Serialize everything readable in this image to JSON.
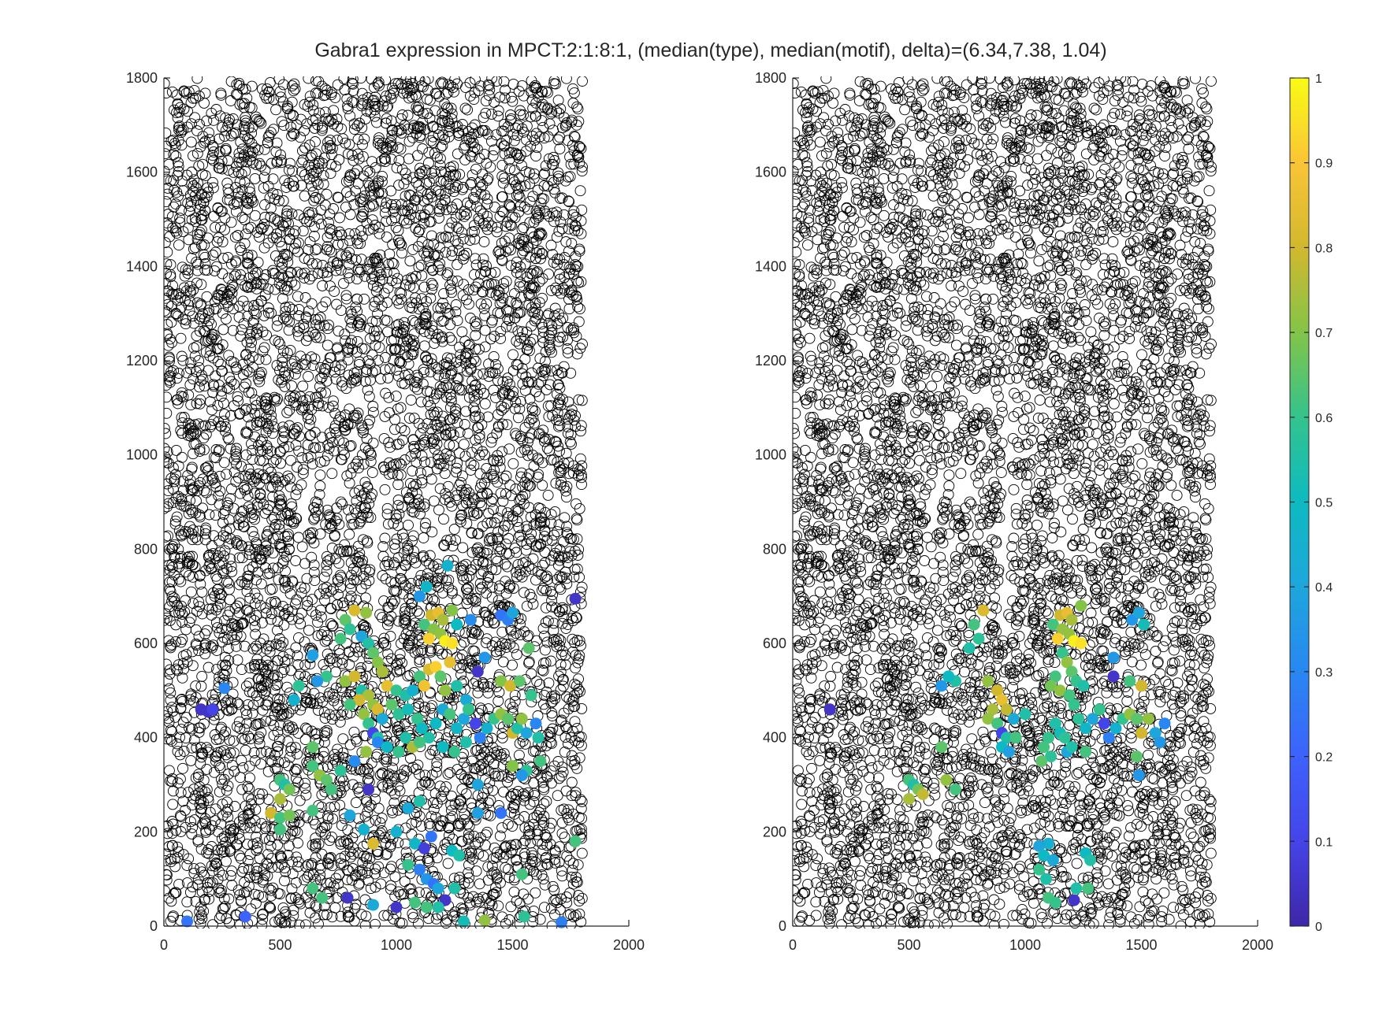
{
  "figure": {
    "title": "Gabra1 expression in MPCT:2:1:8:1, (median(type), median(motif), delta)=(6.34,7.38, 1.04)"
  },
  "chart_data": [
    {
      "type": "scatter",
      "name": "left-panel",
      "xlim": [
        0,
        2000
      ],
      "ylim": [
        0,
        1800
      ],
      "xticks": [
        0,
        500,
        1000,
        1500,
        2000
      ],
      "yticks": [
        0,
        200,
        400,
        600,
        800,
        1000,
        1200,
        1400,
        1600,
        1800
      ],
      "grid": false,
      "background_marker": "open black circle",
      "points": [
        [
          820,
          670,
          0.82
        ],
        [
          870,
          665,
          0.72
        ],
        [
          1100,
          700,
          0.35
        ],
        [
          1130,
          720,
          0.48
        ],
        [
          1220,
          765,
          0.45
        ],
        [
          1150,
          660,
          0.8
        ],
        [
          1180,
          665,
          0.85
        ],
        [
          1200,
          650,
          0.75
        ],
        [
          1240,
          670,
          0.7
        ],
        [
          1120,
          640,
          0.62
        ],
        [
          1160,
          630,
          0.7
        ],
        [
          1140,
          610,
          0.92
        ],
        [
          1190,
          620,
          0.72
        ],
        [
          1210,
          605,
          0.98
        ],
        [
          1240,
          600,
          0.95
        ],
        [
          1260,
          640,
          0.5
        ],
        [
          1320,
          650,
          0.32
        ],
        [
          1450,
          660,
          0.25
        ],
        [
          1480,
          650,
          0.28
        ],
        [
          1500,
          665,
          0.4
        ],
        [
          1770,
          695,
          0.05
        ],
        [
          780,
          650,
          0.65
        ],
        [
          800,
          630,
          0.58
        ],
        [
          850,
          615,
          0.4
        ],
        [
          880,
          600,
          0.55
        ],
        [
          760,
          610,
          0.62
        ],
        [
          640,
          575,
          0.38
        ],
        [
          700,
          530,
          0.6
        ],
        [
          660,
          520,
          0.35
        ],
        [
          580,
          510,
          0.58
        ],
        [
          560,
          480,
          0.45
        ],
        [
          260,
          505,
          0.3
        ],
        [
          160,
          460,
          0.05
        ],
        [
          190,
          455,
          0.05
        ],
        [
          210,
          460,
          0.1
        ],
        [
          900,
          580,
          0.65
        ],
        [
          920,
          560,
          0.7
        ],
        [
          940,
          540,
          0.75
        ],
        [
          960,
          510,
          0.85
        ],
        [
          1000,
          500,
          0.6
        ],
        [
          1040,
          490,
          0.55
        ],
        [
          1070,
          500,
          0.45
        ],
        [
          1100,
          530,
          0.62
        ],
        [
          1120,
          510,
          0.88
        ],
        [
          1140,
          545,
          0.82
        ],
        [
          1170,
          550,
          0.92
        ],
        [
          1190,
          530,
          0.65
        ],
        [
          1210,
          500,
          0.72
        ],
        [
          1230,
          560,
          0.85
        ],
        [
          1260,
          510,
          0.55
        ],
        [
          1300,
          480,
          0.42
        ],
        [
          1350,
          540,
          0.05
        ],
        [
          1380,
          570,
          0.35
        ],
        [
          1450,
          520,
          0.7
        ],
        [
          1490,
          510,
          0.8
        ],
        [
          1530,
          520,
          0.65
        ],
        [
          1570,
          590,
          0.65
        ],
        [
          1580,
          490,
          0.6
        ],
        [
          780,
          520,
          0.72
        ],
        [
          820,
          530,
          0.8
        ],
        [
          850,
          500,
          0.55
        ],
        [
          880,
          490,
          0.75
        ],
        [
          900,
          470,
          0.72
        ],
        [
          920,
          460,
          0.82
        ],
        [
          840,
          480,
          0.8
        ],
        [
          800,
          470,
          0.62
        ],
        [
          860,
          450,
          0.72
        ],
        [
          880,
          430,
          0.6
        ],
        [
          900,
          410,
          0.1
        ],
        [
          920,
          400,
          0.55
        ],
        [
          940,
          440,
          0.42
        ],
        [
          980,
          470,
          0.65
        ],
        [
          1010,
          450,
          0.58
        ],
        [
          1050,
          460,
          0.52
        ],
        [
          1090,
          440,
          0.6
        ],
        [
          1110,
          420,
          0.5
        ],
        [
          1140,
          400,
          0.55
        ],
        [
          1170,
          430,
          0.5
        ],
        [
          1200,
          460,
          0.42
        ],
        [
          1230,
          450,
          0.62
        ],
        [
          1260,
          420,
          0.48
        ],
        [
          1290,
          440,
          0.4
        ],
        [
          1310,
          460,
          0.6
        ],
        [
          1340,
          430,
          0.1
        ],
        [
          1360,
          400,
          0.28
        ],
        [
          1390,
          420,
          0.45
        ],
        [
          1420,
          440,
          0.6
        ],
        [
          1450,
          450,
          0.72
        ],
        [
          1480,
          440,
          0.65
        ],
        [
          1500,
          410,
          0.8
        ],
        [
          1520,
          420,
          0.55
        ],
        [
          1540,
          440,
          0.72
        ],
        [
          1560,
          410,
          0.4
        ],
        [
          1600,
          430,
          0.3
        ],
        [
          1610,
          400,
          0.55
        ],
        [
          1620,
          350,
          0.62
        ],
        [
          1560,
          330,
          0.58
        ],
        [
          1540,
          320,
          0.35
        ],
        [
          1500,
          340,
          0.7
        ],
        [
          920,
          390,
          0.3
        ],
        [
          960,
          380,
          0.48
        ],
        [
          1010,
          370,
          0.6
        ],
        [
          1040,
          400,
          0.55
        ],
        [
          1070,
          380,
          0.75
        ],
        [
          1100,
          390,
          0.62
        ],
        [
          1200,
          380,
          0.5
        ],
        [
          1250,
          370,
          0.6
        ],
        [
          1300,
          390,
          0.55
        ],
        [
          640,
          380,
          0.65
        ],
        [
          640,
          340,
          0.62
        ],
        [
          670,
          320,
          0.72
        ],
        [
          700,
          310,
          0.65
        ],
        [
          720,
          290,
          0.62
        ],
        [
          760,
          330,
          0.58
        ],
        [
          820,
          350,
          0.32
        ],
        [
          870,
          370,
          0.72
        ],
        [
          880,
          290,
          0.05
        ],
        [
          500,
          310,
          0.62
        ],
        [
          520,
          300,
          0.55
        ],
        [
          540,
          290,
          0.68
        ],
        [
          500,
          270,
          0.75
        ],
        [
          460,
          240,
          0.8
        ],
        [
          500,
          230,
          0.62
        ],
        [
          540,
          235,
          0.68
        ],
        [
          500,
          205,
          0.62
        ],
        [
          640,
          245,
          0.62
        ],
        [
          800,
          235,
          0.4
        ],
        [
          860,
          205,
          0.45
        ],
        [
          900,
          175,
          0.82
        ],
        [
          1000,
          200,
          0.45
        ],
        [
          1050,
          250,
          0.42
        ],
        [
          1100,
          265,
          0.55
        ],
        [
          1080,
          175,
          0.48
        ],
        [
          1120,
          165,
          0.08
        ],
        [
          1150,
          190,
          0.25
        ],
        [
          1050,
          130,
          0.6
        ],
        [
          1100,
          120,
          0.28
        ],
        [
          1130,
          100,
          0.35
        ],
        [
          1160,
          90,
          0.25
        ],
        [
          1180,
          80,
          0.4
        ],
        [
          1240,
          160,
          0.5
        ],
        [
          1270,
          150,
          0.55
        ],
        [
          1350,
          300,
          0.4
        ],
        [
          1350,
          240,
          0.38
        ],
        [
          1450,
          240,
          0.25
        ],
        [
          1540,
          110,
          0.62
        ],
        [
          1550,
          20,
          0.58
        ],
        [
          1380,
          12,
          0.72
        ],
        [
          1290,
          10,
          0.52
        ],
        [
          1250,
          80,
          0.55
        ],
        [
          1210,
          55,
          0.05
        ],
        [
          1180,
          40,
          0.55
        ],
        [
          1130,
          40,
          0.62
        ],
        [
          1080,
          50,
          0.62
        ],
        [
          1000,
          40,
          0.05
        ],
        [
          900,
          45,
          0.42
        ],
        [
          790,
          60,
          0.05
        ],
        [
          680,
          60,
          0.62
        ],
        [
          640,
          80,
          0.62
        ],
        [
          350,
          20,
          0.2
        ],
        [
          100,
          10,
          0.25
        ],
        [
          1710,
          8,
          0.28
        ],
        [
          1770,
          180,
          0.62
        ]
      ]
    },
    {
      "type": "scatter",
      "name": "right-panel",
      "xlim": [
        0,
        2000
      ],
      "ylim": [
        0,
        1800
      ],
      "xticks": [
        0,
        500,
        1000,
        1500,
        2000
      ],
      "yticks": [
        0,
        200,
        400,
        600,
        800,
        1000,
        1200,
        1400,
        1600,
        1800
      ],
      "grid": false,
      "background_marker": "open black circle",
      "points": [
        [
          820,
          670,
          0.82
        ],
        [
          780,
          640,
          0.62
        ],
        [
          800,
          610,
          0.58
        ],
        [
          760,
          590,
          0.55
        ],
        [
          700,
          520,
          0.55
        ],
        [
          670,
          530,
          0.5
        ],
        [
          640,
          510,
          0.35
        ],
        [
          840,
          520,
          0.72
        ],
        [
          880,
          500,
          0.8
        ],
        [
          900,
          480,
          0.85
        ],
        [
          920,
          460,
          0.78
        ],
        [
          860,
          460,
          0.75
        ],
        [
          840,
          440,
          0.72
        ],
        [
          880,
          430,
          0.62
        ],
        [
          900,
          410,
          0.1
        ],
        [
          920,
          400,
          0.55
        ],
        [
          950,
          440,
          0.42
        ],
        [
          960,
          400,
          0.62
        ],
        [
          900,
          380,
          0.5
        ],
        [
          930,
          370,
          0.38
        ],
        [
          1000,
          450,
          0.55
        ],
        [
          1150,
          660,
          0.8
        ],
        [
          1180,
          665,
          0.85
        ],
        [
          1200,
          650,
          0.75
        ],
        [
          1240,
          680,
          0.7
        ],
        [
          1120,
          640,
          0.62
        ],
        [
          1160,
          630,
          0.72
        ],
        [
          1140,
          610,
          0.92
        ],
        [
          1190,
          620,
          0.72
        ],
        [
          1210,
          605,
          0.98
        ],
        [
          1240,
          600,
          0.95
        ],
        [
          1160,
          580,
          0.6
        ],
        [
          1180,
          560,
          0.72
        ],
        [
          1200,
          540,
          0.65
        ],
        [
          1220,
          520,
          0.6
        ],
        [
          1250,
          510,
          0.55
        ],
        [
          1130,
          530,
          0.62
        ],
        [
          1110,
          510,
          0.68
        ],
        [
          1150,
          500,
          0.72
        ],
        [
          1190,
          490,
          0.62
        ],
        [
          1210,
          470,
          0.6
        ],
        [
          1230,
          440,
          0.58
        ],
        [
          1260,
          420,
          0.48
        ],
        [
          1290,
          440,
          0.4
        ],
        [
          1320,
          460,
          0.6
        ],
        [
          1340,
          430,
          0.1
        ],
        [
          1360,
          400,
          0.28
        ],
        [
          1390,
          420,
          0.45
        ],
        [
          1420,
          440,
          0.6
        ],
        [
          1450,
          450,
          0.72
        ],
        [
          1480,
          440,
          0.65
        ],
        [
          1500,
          410,
          0.8
        ],
        [
          1530,
          440,
          0.72
        ],
        [
          1560,
          410,
          0.4
        ],
        [
          1600,
          430,
          0.3
        ],
        [
          1580,
          390,
          0.35
        ],
        [
          1480,
          360,
          0.65
        ],
        [
          1490,
          320,
          0.35
        ],
        [
          1460,
          650,
          0.35
        ],
        [
          1490,
          665,
          0.4
        ],
        [
          1510,
          640,
          0.52
        ],
        [
          1380,
          570,
          0.35
        ],
        [
          1380,
          530,
          0.05
        ],
        [
          1450,
          520,
          0.62
        ],
        [
          1500,
          510,
          0.8
        ],
        [
          1130,
          430,
          0.55
        ],
        [
          1150,
          410,
          0.52
        ],
        [
          1170,
          400,
          0.58
        ],
        [
          1100,
          400,
          0.6
        ],
        [
          1080,
          380,
          0.62
        ],
        [
          1110,
          360,
          0.58
        ],
        [
          1070,
          350,
          0.65
        ],
        [
          1180,
          370,
          0.4
        ],
        [
          1260,
          370,
          0.62
        ],
        [
          1200,
          380,
          0.55
        ],
        [
          160,
          460,
          0.05
        ],
        [
          500,
          310,
          0.62
        ],
        [
          520,
          300,
          0.55
        ],
        [
          540,
          290,
          0.68
        ],
        [
          500,
          270,
          0.75
        ],
        [
          560,
          280,
          0.78
        ],
        [
          640,
          380,
          0.65
        ],
        [
          660,
          310,
          0.72
        ],
        [
          700,
          290,
          0.62
        ],
        [
          1100,
          175,
          0.45
        ],
        [
          1060,
          170,
          0.4
        ],
        [
          1080,
          150,
          0.5
        ],
        [
          1120,
          140,
          0.42
        ],
        [
          1060,
          120,
          0.6
        ],
        [
          1090,
          100,
          0.55
        ],
        [
          1100,
          60,
          0.62
        ],
        [
          1130,
          50,
          0.6
        ],
        [
          1210,
          55,
          0.05
        ],
        [
          1220,
          80,
          0.55
        ],
        [
          1260,
          155,
          0.5
        ],
        [
          1280,
          140,
          0.55
        ],
        [
          1270,
          80,
          0.62
        ]
      ]
    }
  ],
  "colorbar": {
    "colormap": "parula",
    "range": [
      0,
      1
    ],
    "ticks": [
      "0",
      "0.1",
      "0.2",
      "0.3",
      "0.4",
      "0.5",
      "0.6",
      "0.7",
      "0.8",
      "0.9",
      "1"
    ]
  }
}
